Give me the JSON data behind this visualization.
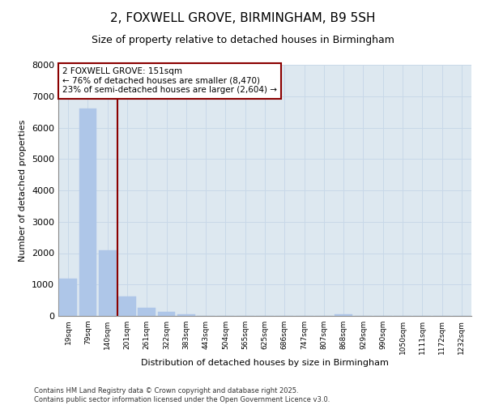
{
  "title": "2, FOXWELL GROVE, BIRMINGHAM, B9 5SH",
  "subtitle": "Size of property relative to detached houses in Birmingham",
  "xlabel": "Distribution of detached houses by size in Birmingham",
  "ylabel": "Number of detached properties",
  "categories": [
    "19sqm",
    "79sqm",
    "140sqm",
    "201sqm",
    "261sqm",
    "322sqm",
    "383sqm",
    "443sqm",
    "504sqm",
    "565sqm",
    "625sqm",
    "686sqm",
    "747sqm",
    "807sqm",
    "868sqm",
    "929sqm",
    "990sqm",
    "1050sqm",
    "1111sqm",
    "1172sqm",
    "1232sqm"
  ],
  "values": [
    1200,
    6600,
    2100,
    620,
    270,
    130,
    50,
    0,
    0,
    0,
    0,
    0,
    0,
    0,
    50,
    0,
    0,
    0,
    0,
    0,
    0
  ],
  "bar_color": "#aec6e8",
  "bar_edgecolor": "#aec6e8",
  "vline_color": "#8b0000",
  "annotation_text": "2 FOXWELL GROVE: 151sqm\n← 76% of detached houses are smaller (8,470)\n23% of semi-detached houses are larger (2,604) →",
  "annotation_box_edgecolor": "#8b0000",
  "annotation_box_facecolor": "white",
  "grid_color": "#c8d8e8",
  "background_color": "#dde8f0",
  "footer": "Contains HM Land Registry data © Crown copyright and database right 2025.\nContains public sector information licensed under the Open Government Licence v3.0.",
  "ylim": [
    0,
    8000
  ],
  "yticks": [
    0,
    1000,
    2000,
    3000,
    4000,
    5000,
    6000,
    7000,
    8000
  ],
  "title_fontsize": 11,
  "subtitle_fontsize": 9
}
